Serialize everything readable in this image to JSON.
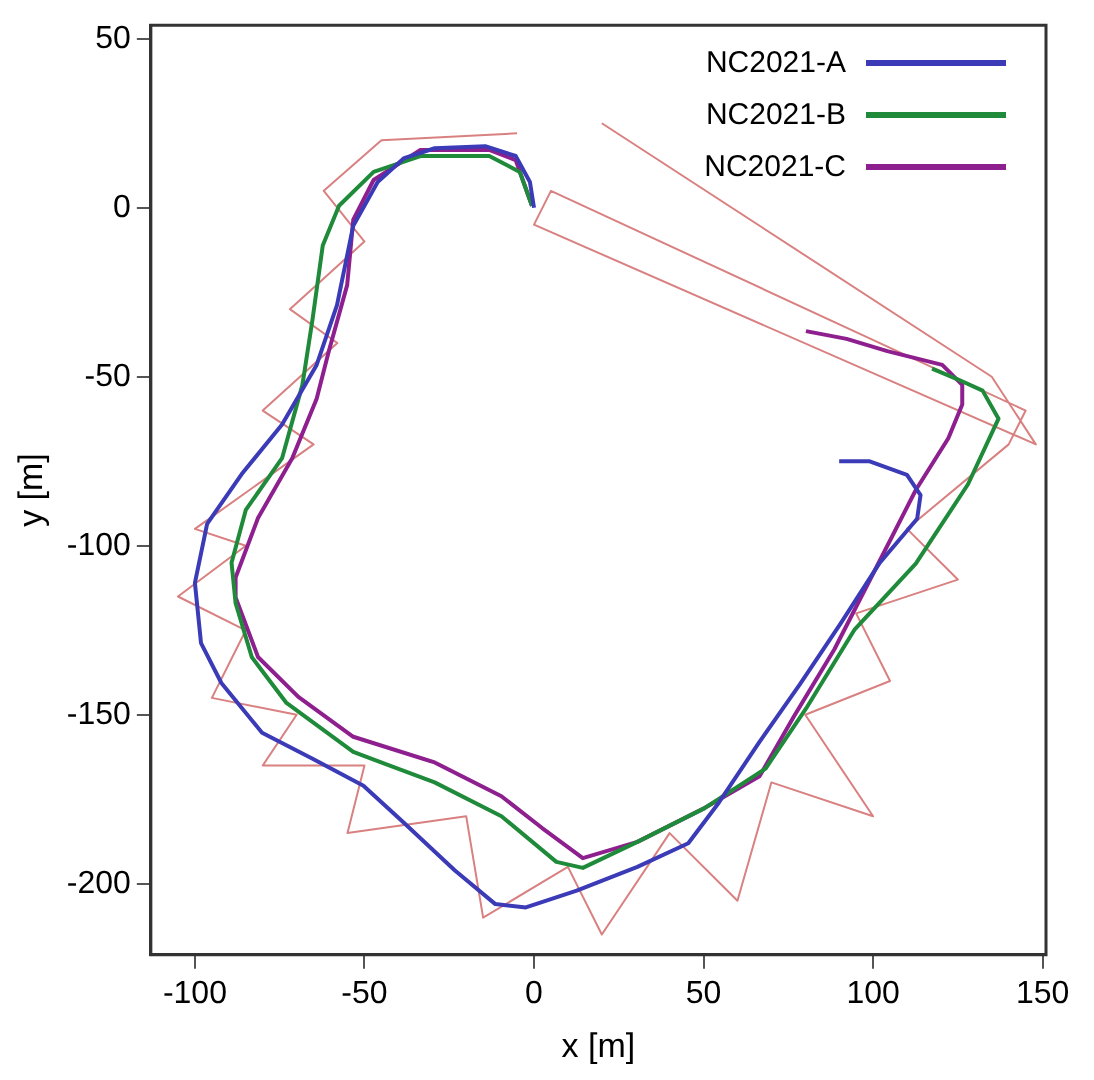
{
  "chart_data": {
    "type": "line",
    "xlabel": "x [m]",
    "ylabel": "y [m]",
    "xlim": [
      -113,
      151
    ],
    "ylim": [
      -221,
      54
    ],
    "xticks": [
      -100,
      -50,
      0,
      50,
      100,
      150
    ],
    "yticks": [
      -200,
      -150,
      -100,
      -50,
      0,
      50
    ],
    "grid": false,
    "legend": "top right",
    "marker": "none",
    "line_style": "solid",
    "series": [
      {
        "type": "line",
        "color": "#d98080",
        "x": [
          -5,
          -45,
          -62,
          -50,
          -72,
          -58,
          -80,
          -65,
          -100,
          -85,
          -105,
          -85,
          -95,
          -70,
          -80,
          -50,
          -55,
          -20,
          -15,
          10,
          20,
          40,
          60,
          70,
          100,
          80,
          105,
          95,
          125,
          110,
          140,
          145,
          5,
          0,
          148,
          135,
          20
        ],
        "values": [
          22,
          20,
          5,
          -10,
          -30,
          -40,
          -60,
          -70,
          -95,
          -100,
          -115,
          -125,
          -145,
          -150,
          -165,
          -165,
          -185,
          -180,
          -210,
          -195,
          -215,
          -185,
          -205,
          -170,
          -180,
          -150,
          -140,
          -120,
          -110,
          -95,
          -70,
          -60,
          5,
          -5,
          -70,
          -50,
          25
        ]
      },
      {
        "name": "NC2021-A",
        "color": "#3b3bb8",
        "x": [
          0,
          -1.2,
          -5.4,
          -14.4,
          -29.3,
          -38.3,
          -46.1,
          -53.3,
          -58.1,
          -64.1,
          -74.3,
          -86.2,
          -96.4,
          -100,
          -98.2,
          -92.2,
          -80.2,
          -65.3,
          -50.3,
          -38.3,
          -23.4,
          -11.4,
          -2.4,
          12.6,
          30.5,
          45.5,
          54.5,
          66.5,
          78.4,
          90.4,
          102,
          113,
          114,
          110,
          99,
          90
        ],
        "values": [
          0,
          7.6,
          15.3,
          18.2,
          17.6,
          14.7,
          7.6,
          -5.3,
          -28.8,
          -46.5,
          -64.1,
          -78.8,
          -93.5,
          -111,
          -128.8,
          -140.6,
          -155.3,
          -163,
          -171,
          -182,
          -196,
          -206,
          -207,
          -202,
          -195,
          -188,
          -176,
          -158,
          -141,
          -123,
          -105,
          -92,
          -85,
          -79,
          -75,
          -75
        ]
      },
      {
        "name": "NC2021-B",
        "color": "#1f8a3a",
        "x": [
          -0.6,
          -4.2,
          -13.2,
          -33.5,
          -47.3,
          -57.5,
          -62.3,
          -65.3,
          -68.3,
          -74.3,
          -85,
          -89.2,
          -88,
          -83.2,
          -73,
          -53.3,
          -29.3,
          -9.6,
          6.6,
          14.4,
          30.5,
          50.3,
          68.3,
          80.2,
          94.6,
          112.6,
          128,
          137,
          132.3,
          124.6,
          117.4
        ],
        "values": [
          0.6,
          10.6,
          15.3,
          15.3,
          10.6,
          0.6,
          -11.2,
          -32.9,
          -52.4,
          -74.1,
          -89.4,
          -105,
          -117,
          -133,
          -146.5,
          -161,
          -170,
          -180,
          -193.5,
          -195.3,
          -187.6,
          -177.6,
          -165.9,
          -148.2,
          -124.7,
          -105.3,
          -81.8,
          -62.4,
          -54.1,
          -50.6,
          -47.6
        ]
      },
      {
        "name": "NC2021-C",
        "color": "#8e1f8e",
        "x": [
          -0.6,
          -5.4,
          -13.2,
          -33.5,
          -47.3,
          -53.3,
          -55.1,
          -60.5,
          -64.1,
          -71.3,
          -81.4,
          -88,
          -88,
          -81.4,
          -69.5,
          -53.3,
          -29.3,
          -9.6,
          2.4,
          14.4,
          30.5,
          50.3,
          66.5,
          76.6,
          88.6,
          100.6,
          112.6,
          122.2,
          126.3,
          126.3,
          120.4,
          104.2,
          92.2,
          80.2
        ],
        "values": [
          0.6,
          14.1,
          17.1,
          17.1,
          8.2,
          -3.5,
          -22.9,
          -42.4,
          -56.5,
          -74.1,
          -91.8,
          -109.4,
          -115.3,
          -132.9,
          -144.7,
          -156.5,
          -164.1,
          -174.1,
          -183.5,
          -192.4,
          -187.6,
          -177.6,
          -168.2,
          -150.6,
          -130.6,
          -107.1,
          -83.5,
          -68.2,
          -58.2,
          -52.4,
          -46.5,
          -42.4,
          -38.8,
          -36.5
        ]
      }
    ]
  }
}
